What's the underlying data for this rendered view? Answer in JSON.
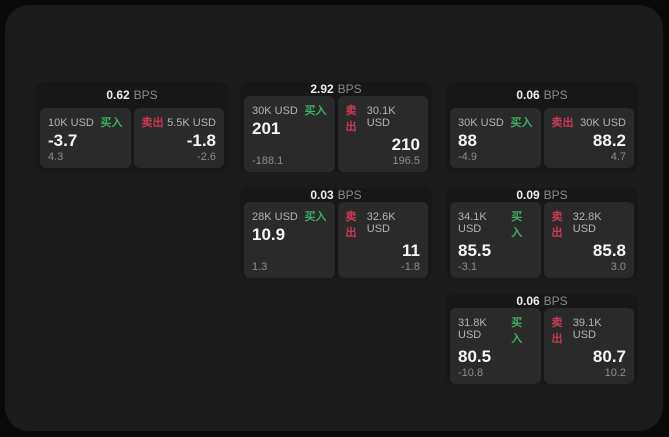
{
  "labels": {
    "bps_suffix": "BPS",
    "buy": "买入",
    "sell": "卖出"
  },
  "colors": {
    "buy_green": "#3caf63",
    "sell_red": "#c93b55",
    "panel_bg": "#1b1b1b",
    "card_bg": "#171717",
    "pane_bg": "#2a2a2a"
  },
  "columns": [
    {
      "cards": [
        {
          "bps": "0.62",
          "buy": {
            "amount": "10K USD",
            "value": "-3.7",
            "delta": "4.3"
          },
          "sell": {
            "amount": "5.5K USD",
            "value": "-1.8",
            "delta": "-2.6"
          }
        }
      ]
    },
    {
      "cards": [
        {
          "bps": "2.92",
          "buy": {
            "amount": "30K USD",
            "value": "201",
            "delta": "-188.1"
          },
          "sell": {
            "amount": "30.1K USD",
            "value": "210",
            "delta": "196.5"
          }
        },
        {
          "bps": "0.03",
          "buy": {
            "amount": "28K USD",
            "value": "10.9",
            "delta": "1.3"
          },
          "sell": {
            "amount": "32.6K USD",
            "value": "11",
            "delta": "-1.8"
          }
        }
      ]
    },
    {
      "cards": [
        {
          "bps": "0.06",
          "buy": {
            "amount": "30K USD",
            "value": "88",
            "delta": "-4.9"
          },
          "sell": {
            "amount": "30K USD",
            "value": "88.2",
            "delta": "4.7"
          }
        },
        {
          "bps": "0.09",
          "buy": {
            "amount": "34.1K USD",
            "value": "85.5",
            "delta": "-3.1"
          },
          "sell": {
            "amount": "32.8K USD",
            "value": "85.8",
            "delta": "3.0"
          }
        },
        {
          "bps": "0.06",
          "buy": {
            "amount": "31.8K USD",
            "value": "80.5",
            "delta": "-10.8"
          },
          "sell": {
            "amount": "39.1K USD",
            "value": "80.7",
            "delta": "10.2"
          }
        }
      ]
    }
  ]
}
